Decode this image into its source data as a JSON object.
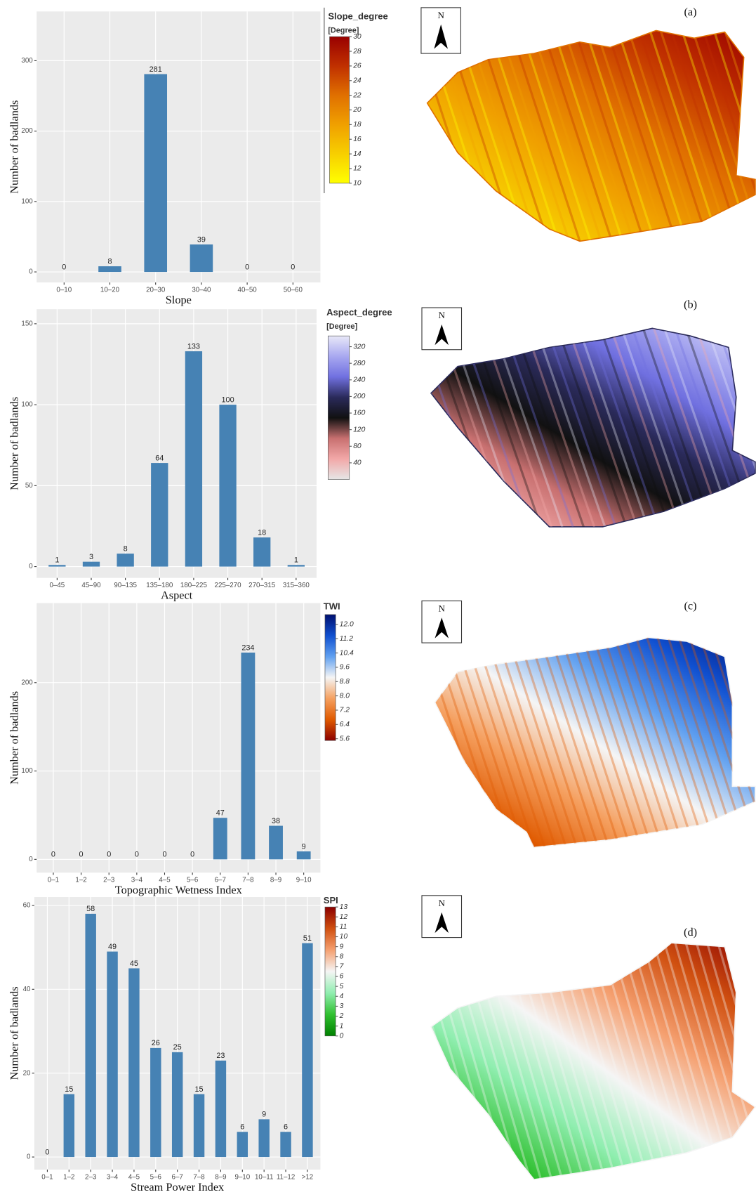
{
  "chart_data": [
    {
      "type": "bar",
      "x_label": "Slope",
      "y_label": "Number of badlands",
      "color": "#4682b4",
      "grid": true,
      "categories": [
        "0–10",
        "10–20",
        "20–30",
        "30–40",
        "40–50",
        "50–60"
      ],
      "values": [
        0,
        8,
        281,
        39,
        0,
        0
      ],
      "ylim": [
        -15,
        370
      ],
      "yticks": [
        0,
        100,
        200,
        300
      ],
      "colorbar": {
        "title": "Slope_degree",
        "unit": "[Degree]",
        "lim": [
          10,
          30
        ],
        "ticks": [
          10,
          12,
          14,
          16,
          18,
          20,
          22,
          24,
          26,
          28,
          30
        ],
        "colors": [
          "#ffff00",
          "#f7cf00",
          "#f0a000",
          "#e07000",
          "#c03000",
          "#990000"
        ]
      },
      "map": {
        "panel_label": "(a)",
        "north": "N"
      }
    },
    {
      "type": "bar",
      "x_label": "Aspect",
      "y_label": "Number of badlands",
      "color": "#4682b4",
      "grid": true,
      "categories": [
        "0–45",
        "45–90",
        "90–135",
        "135–180",
        "180–225",
        "225–270",
        "270–315",
        "315–360"
      ],
      "values": [
        1,
        3,
        8,
        64,
        133,
        100,
        18,
        1
      ],
      "ylim": [
        -7,
        159
      ],
      "yticks": [
        0,
        50,
        100,
        150
      ],
      "colorbar": {
        "title": "Aspect_degree",
        "unit": "[Degree]",
        "lim": [
          0,
          346
        ],
        "ticks": [
          40,
          80,
          120,
          160,
          200,
          240,
          280,
          320
        ],
        "colors": [
          "#e6e6e6",
          "#f2a8a8",
          "#c87070",
          "#111111",
          "#2a2a5a",
          "#7070e0",
          "#a8a8f0",
          "#e8e8f8"
        ]
      },
      "map": {
        "panel_label": "(b)",
        "north": "N"
      }
    },
    {
      "type": "bar",
      "x_label": "Topographic Wetness Index",
      "y_label": "Number of badlands",
      "color": "#4682b4",
      "grid": true,
      "categories": [
        "0–1",
        "1–2",
        "2–3",
        "3–4",
        "4–5",
        "5–6",
        "6–7",
        "7–8",
        "8–9",
        "9–10"
      ],
      "values": [
        0,
        0,
        0,
        0,
        0,
        0,
        47,
        234,
        38,
        9
      ],
      "ylim": [
        -15,
        290
      ],
      "yticks": [
        0,
        100,
        200
      ],
      "colorbar": {
        "title": "TWI",
        "lim": [
          5.5,
          12.55
        ],
        "ticks": [
          {
            "value": 5.6,
            "label": "5.6"
          },
          6.4,
          7.2,
          {
            "value": 8,
            "label": "8.0"
          },
          8.8,
          9.6,
          10.4,
          11.2,
          {
            "value": 12,
            "label": "12.0"
          }
        ],
        "colors": [
          "#8b0000",
          "#e05a00",
          "#f5a060",
          "#f5f5f5",
          "#60a0f0",
          "#1050d0",
          "#001070"
        ]
      },
      "map": {
        "panel_label": "(c)",
        "north": "N"
      }
    },
    {
      "type": "bar",
      "x_label": "Stream Power Index",
      "y_label": "Number of badlands",
      "color": "#4682b4",
      "grid": true,
      "categories": [
        "0–1",
        "1–2",
        "2–3",
        "3–4",
        "4–5",
        "5–6",
        "6–7",
        "7–8",
        "8–9",
        "9–10",
        "10–11",
        "11–12",
        ">12"
      ],
      "values": [
        0,
        15,
        58,
        49,
        45,
        26,
        25,
        15,
        23,
        6,
        9,
        6,
        51
      ],
      "ylim": [
        -3,
        62
      ],
      "yticks": [
        0,
        20,
        40,
        60
      ],
      "colorbar": {
        "title": "SPI",
        "lim": [
          0,
          13
        ],
        "ticks": [
          0,
          1,
          2,
          3,
          4,
          5,
          6,
          7,
          8,
          9,
          10,
          11,
          12,
          13
        ],
        "colors": [
          "#008000",
          "#30c030",
          "#90eeb0",
          "#f5f5f5",
          "#f5a070",
          "#d05010",
          "#8b0000"
        ]
      },
      "map": {
        "panel_label": "(d)",
        "north": "N"
      }
    }
  ]
}
